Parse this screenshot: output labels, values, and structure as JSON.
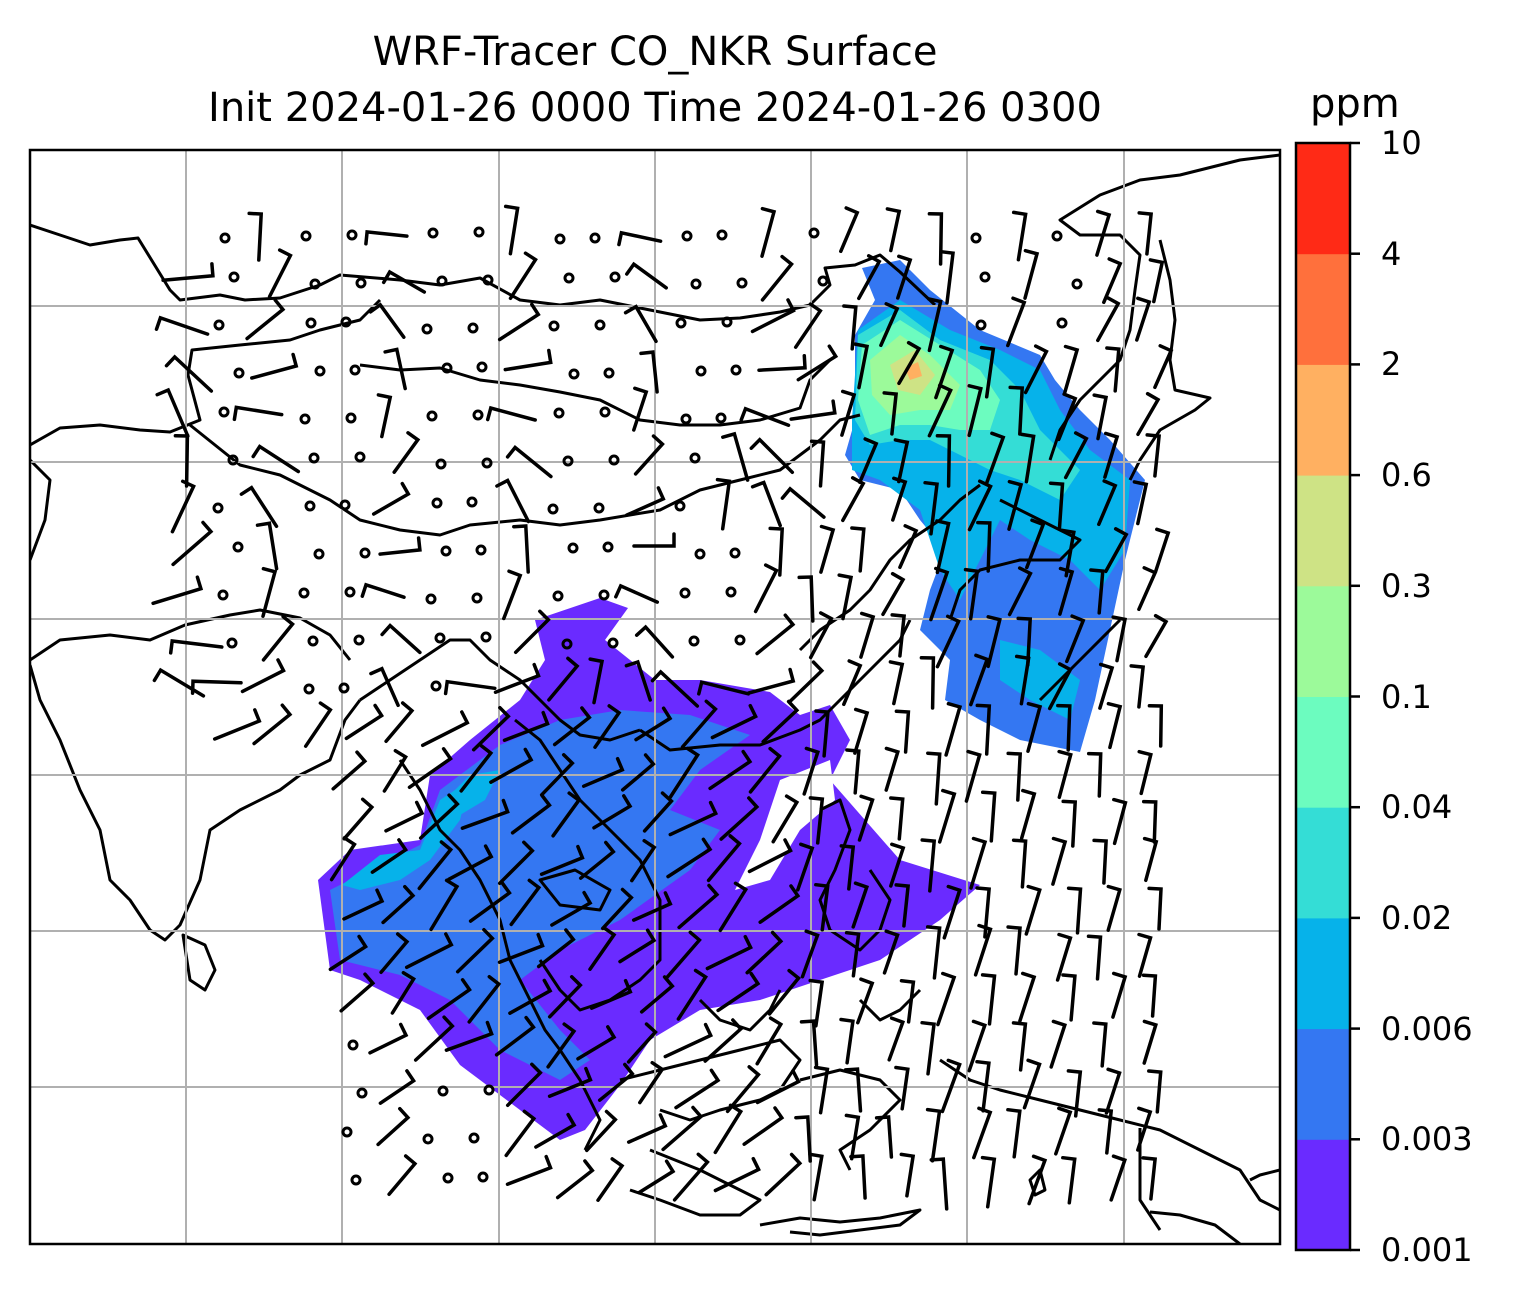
{
  "title_line1": "WRF-Tracer CO_NKR Surface",
  "title_line2": "Init 2024-01-26 0000 Time 2024-01-26 0300",
  "colorbar": {
    "unit": "ppm",
    "levels": [
      "0.001",
      "0.003",
      "0.006",
      "0.02",
      "0.04",
      "0.1",
      "0.3",
      "0.6",
      "2",
      "4",
      "10"
    ],
    "colors": [
      "#6a2bff",
      "#3477f2",
      "#06b2ea",
      "#34ddd6",
      "#6cfcbf",
      "#9cfa9a",
      "#cee385",
      "#ffb061",
      "#ff703c",
      "#ff2a16"
    ]
  },
  "map": {
    "field": "CO_NKR",
    "level": "Surface",
    "gridlines": true,
    "wind_barbs": true,
    "coastlines": true
  }
}
